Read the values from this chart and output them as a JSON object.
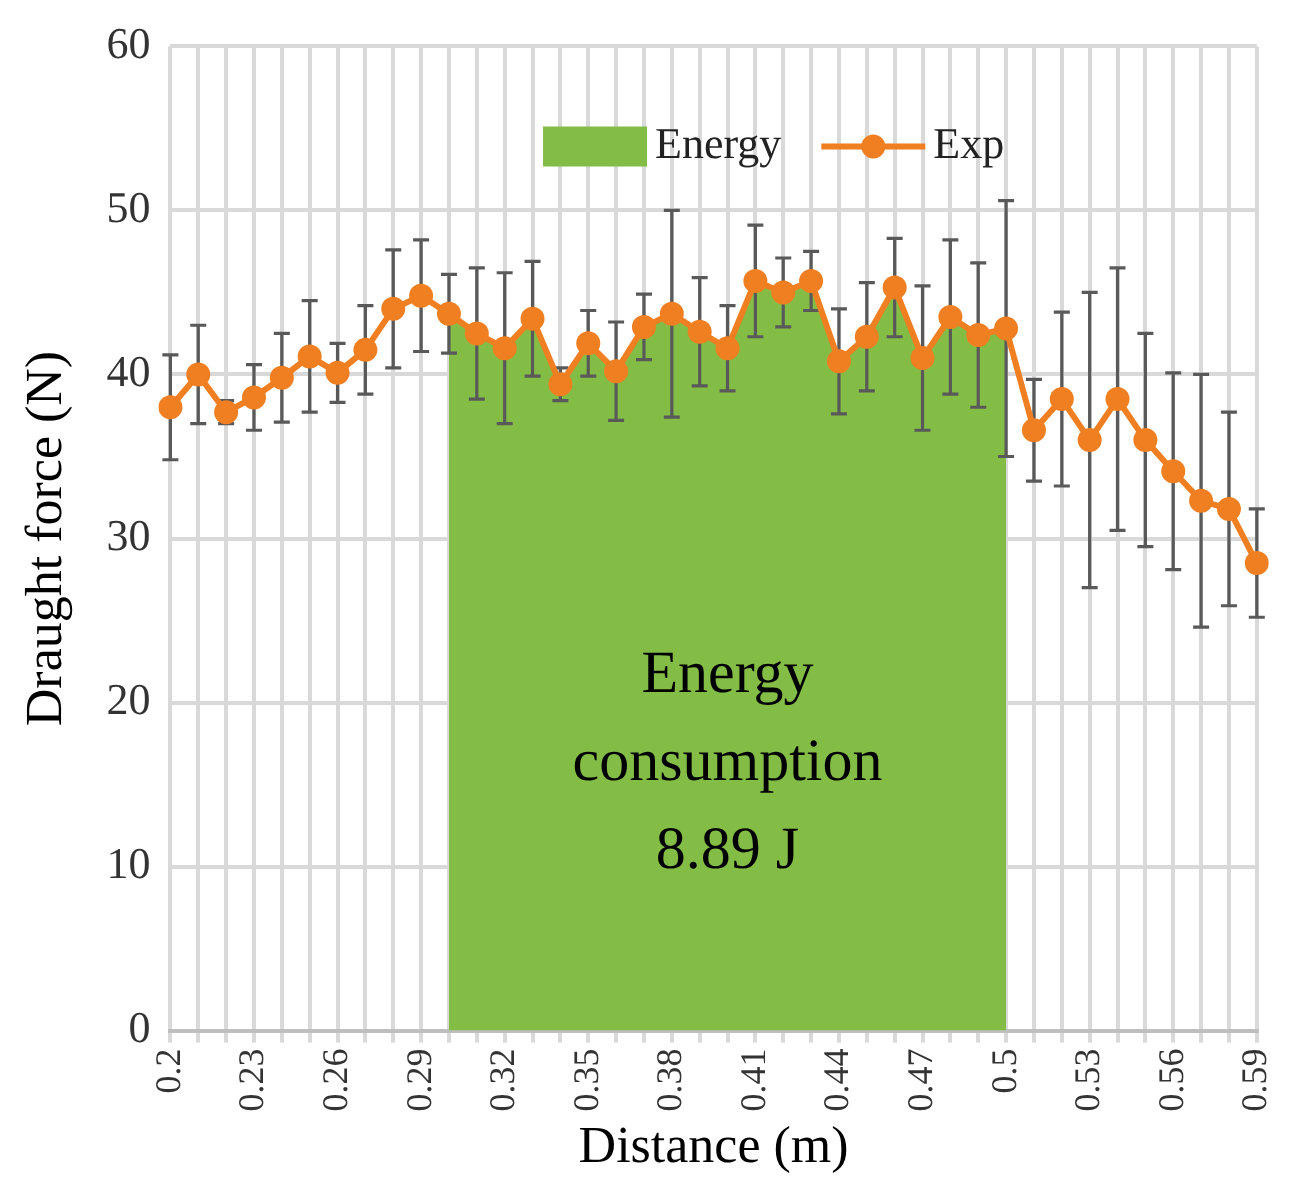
{
  "chart_data": {
    "type": "line",
    "xlabel": "Distance (m)",
    "ylabel": "Draught force (N)",
    "categories": [
      "0.2",
      null,
      null,
      "0.23",
      null,
      null,
      "0.26",
      null,
      null,
      "0.29",
      null,
      null,
      "0.32",
      null,
      null,
      "0.35",
      null,
      null,
      "0.38",
      null,
      null,
      "0.41",
      null,
      null,
      "0.44",
      null,
      null,
      "0.47",
      null,
      null,
      "0.5",
      null,
      null,
      "0.53",
      null,
      null,
      "0.56",
      null,
      null,
      "0.59"
    ],
    "series": [
      {
        "name": "Energy",
        "type": "area",
        "color": "#84bd46",
        "values": [
          null,
          null,
          null,
          null,
          null,
          null,
          null,
          null,
          null,
          null,
          43.7,
          42.5,
          41.6,
          43.4,
          39.4,
          41.9,
          40.2,
          42.9,
          43.7,
          42.6,
          41.6,
          45.7,
          45.0,
          45.7,
          40.8,
          42.3,
          45.3,
          41.0,
          43.5,
          42.4,
          42.8,
          null,
          null,
          null,
          null,
          null,
          null,
          null,
          null,
          null
        ]
      },
      {
        "name": "Exp",
        "marker": "circle",
        "color": "#f07f22",
        "values": [
          38.0,
          40.0,
          37.7,
          38.6,
          39.8,
          41.1,
          40.1,
          41.5,
          44.0,
          44.8,
          43.7,
          42.5,
          41.6,
          43.4,
          39.4,
          41.9,
          40.2,
          42.9,
          43.7,
          42.6,
          41.6,
          45.7,
          45.0,
          45.7,
          40.8,
          42.3,
          45.3,
          41.0,
          43.5,
          42.4,
          42.8,
          36.6,
          38.5,
          36.0,
          38.5,
          36.0,
          34.1,
          32.3,
          31.8,
          28.5
        ],
        "errors": [
          3.2,
          3.0,
          0.7,
          2.0,
          2.7,
          3.4,
          1.8,
          2.7,
          3.6,
          3.4,
          2.4,
          4.0,
          4.6,
          3.5,
          1.0,
          2.0,
          3.0,
          2.0,
          6.3,
          3.3,
          2.6,
          3.4,
          2.1,
          1.8,
          3.2,
          3.3,
          3.0,
          4.4,
          4.7,
          4.4,
          7.8,
          3.1,
          5.3,
          9.0,
          8.0,
          6.5,
          6.0,
          7.7,
          5.9,
          3.3
        ]
      }
    ],
    "ylim": [
      0,
      60
    ],
    "yticks": [
      0,
      10,
      20,
      30,
      40,
      50,
      60
    ],
    "grid": true,
    "legend": "top",
    "line_style": "solid",
    "annotations": [
      "Energy\nconsumption\n8.89 J"
    ]
  }
}
